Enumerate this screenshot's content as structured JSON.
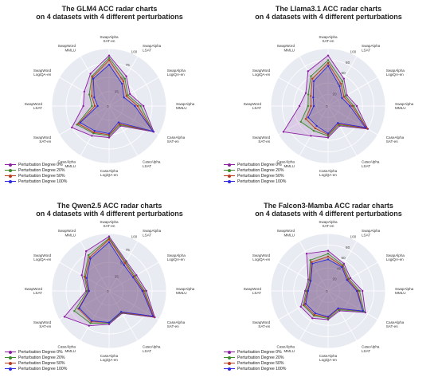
{
  "colors": [
    "#8a1fa0",
    "#3d8b2a",
    "#b83b1e",
    "#2a2ae0"
  ],
  "chart_data": [
    {
      "type": "radar",
      "title_line1": "The GLM4 ACC radar charts",
      "title_line2": "on 4 datasets with 4 different perturbations",
      "axes": [
        "SwapAlpha\nSAT-en",
        "SwapAlpha\nLSAT",
        "SwapAlpha\nLogiQA-en",
        "SwapAlpha\nMMLU",
        "CaseAlpha\nSAT-en",
        "CaseAlpha\nLSAT",
        "CaseAlpha\nLogiQA-en",
        "CaseAlpha\nMMLU",
        "SwapWord\nSAT-en",
        "SwapWord\nLSAT",
        "SwapWord\nLogiQA-en",
        "SwapWord\nMMLU"
      ],
      "ticks": [
        "25",
        "50",
        "75",
        "100"
      ],
      "rmax": 100,
      "legend_position": "bottom-left",
      "series": [
        {
          "name": "Perturbation Degree 0%",
          "values": [
            88,
            60,
            42,
            60,
            90,
            40,
            55,
            60,
            75,
            45,
            50,
            65
          ]
        },
        {
          "name": "Perturbation Degree 20%",
          "values": [
            84,
            55,
            38,
            55,
            88,
            38,
            52,
            55,
            65,
            30,
            40,
            60
          ]
        },
        {
          "name": "Perturbation Degree 50%",
          "values": [
            80,
            50,
            35,
            50,
            88,
            36,
            50,
            53,
            62,
            25,
            35,
            58
          ]
        },
        {
          "name": "Perturbation Degree 100%",
          "values": [
            72,
            45,
            30,
            45,
            88,
            33,
            48,
            50,
            58,
            20,
            30,
            55
          ]
        }
      ]
    },
    {
      "type": "radar",
      "title_line1": "The Llama3.1 ACC radar charts",
      "title_line2": "on 4 datasets with 4 different perturbations",
      "axes": [
        "SwapAlpha\nSAT-en",
        "SwapAlpha\nLSAT",
        "SwapAlpha\nLogiQA-en",
        "SwapAlpha\nMMLU",
        "CaseAlpha\nSAT-en",
        "CaseAlpha\nLSAT",
        "CaseAlpha\nLogiQA-en",
        "CaseAlpha\nMMLU",
        "SwapWord\nSAT-en",
        "SwapWord\nLSAT",
        "SwapWord\nLogiQA-en",
        "SwapWord\nMMLU"
      ],
      "ticks": [
        "20",
        "40",
        "60",
        "80",
        "100"
      ],
      "rmax": 100,
      "legend_position": "bottom-left",
      "series": [
        {
          "name": "Perturbation Degree 0%",
          "values": [
            88,
            55,
            38,
            50,
            80,
            40,
            55,
            60,
            90,
            50,
            45,
            70
          ]
        },
        {
          "name": "Perturbation Degree 20%",
          "values": [
            80,
            50,
            35,
            45,
            78,
            38,
            52,
            50,
            55,
            35,
            40,
            60
          ]
        },
        {
          "name": "Perturbation Degree 50%",
          "values": [
            75,
            45,
            32,
            42,
            78,
            36,
            50,
            45,
            45,
            30,
            35,
            55
          ]
        },
        {
          "name": "Perturbation Degree 100%",
          "values": [
            70,
            40,
            28,
            38,
            75,
            34,
            48,
            40,
            40,
            25,
            30,
            50
          ]
        }
      ]
    },
    {
      "type": "radar",
      "title_line1": "The Qwen2.5 ACC radar charts",
      "title_line2": "on 4 datasets with 4 different perturbations",
      "axes": [
        "SwapAlpha\nSAT-en",
        "SwapAlpha\nLSAT",
        "SwapAlpha\nLogiQA-en",
        "SwapAlpha\nMMLU",
        "CaseAlpha\nSAT-en",
        "CaseAlpha\nLSAT",
        "CaseAlpha\nLogiQA-en",
        "CaseAlpha\nMMLU",
        "SwapWord\nSAT-en",
        "SwapWord\nLSAT",
        "SwapWord\nLogiQA-en",
        "SwapWord\nMMLU"
      ],
      "ticks": [
        "25",
        "50",
        "75",
        "100"
      ],
      "rmax": 100,
      "legend_position": "bottom-left",
      "series": [
        {
          "name": "Perturbation Degree 0%",
          "values": [
            95,
            60,
            55,
            65,
            92,
            45,
            58,
            70,
            90,
            40,
            55,
            80
          ]
        },
        {
          "name": "Perturbation Degree 20%",
          "values": [
            92,
            58,
            52,
            62,
            90,
            44,
            56,
            65,
            70,
            38,
            50,
            72
          ]
        },
        {
          "name": "Perturbation Degree 50%",
          "values": [
            90,
            56,
            50,
            60,
            90,
            43,
            55,
            62,
            62,
            36,
            48,
            68
          ]
        },
        {
          "name": "Perturbation Degree 100%",
          "values": [
            85,
            52,
            48,
            58,
            88,
            42,
            55,
            60,
            60,
            35,
            45,
            65
          ]
        }
      ]
    },
    {
      "type": "radar",
      "title_line1": "The Falcon3-Mamba ACC radar charts",
      "title_line2": "on 4 datasets with 4 different perturbations",
      "axes": [
        "SwapAlpha\nSAT-en",
        "SwapAlpha\nLSAT",
        "SwapAlpha\nLogiQA-en",
        "SwapAlpha\nMMLU",
        "CaseAlpha\nSAT-en",
        "CaseAlpha\nLSAT",
        "CaseAlpha\nLogiQA-en",
        "CaseAlpha\nMMLU",
        "SwapWord\nSAT-en",
        "SwapWord\nLSAT",
        "SwapWord\nLogiQA-en",
        "SwapWord\nMMLU"
      ],
      "ticks": [
        "20",
        "40",
        "60",
        "80",
        "100"
      ],
      "rmax": 100,
      "legend_position": "bottom-left",
      "series": [
        {
          "name": "Perturbation Degree 0%",
          "values": [
            70,
            55,
            45,
            60,
            75,
            40,
            50,
            55,
            55,
            40,
            40,
            75
          ]
        },
        {
          "name": "Perturbation Degree 20%",
          "values": [
            65,
            52,
            42,
            55,
            72,
            38,
            48,
            50,
            50,
            38,
            38,
            62
          ]
        },
        {
          "name": "Perturbation Degree 50%",
          "values": [
            60,
            50,
            40,
            52,
            70,
            36,
            46,
            48,
            48,
            36,
            36,
            58
          ]
        },
        {
          "name": "Perturbation Degree 100%",
          "values": [
            55,
            48,
            38,
            50,
            70,
            35,
            45,
            45,
            45,
            35,
            35,
            55
          ]
        }
      ]
    }
  ]
}
